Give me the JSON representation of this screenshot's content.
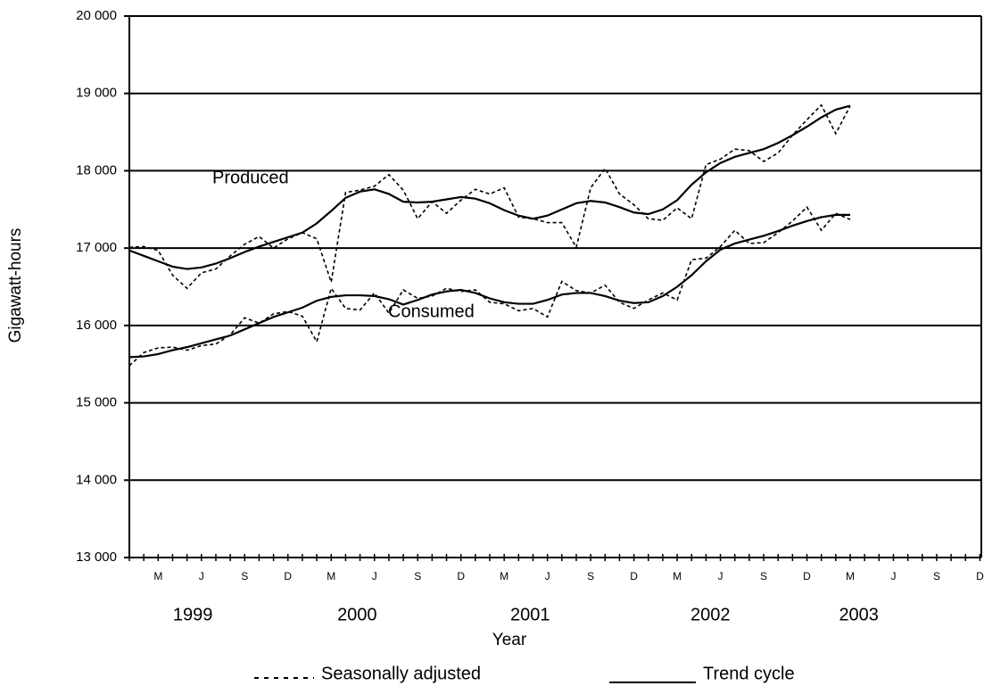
{
  "chart_data": {
    "type": "line",
    "y_label": "Gigawatt-hours",
    "x_label": "Year",
    "categories": [
      null,
      null,
      "M",
      null,
      null,
      "J",
      null,
      null,
      "S",
      null,
      null,
      "D",
      null,
      null,
      "M",
      null,
      null,
      "J",
      null,
      null,
      "S",
      null,
      null,
      "D",
      null,
      null,
      "M",
      null,
      null,
      "J",
      null,
      null,
      "S",
      null,
      null,
      "D",
      null,
      null,
      "M",
      null,
      null,
      "J",
      null,
      null,
      "S",
      null,
      null,
      "D",
      null,
      null,
      "M",
      null,
      null,
      "J",
      null,
      null,
      "S",
      null,
      null,
      "D"
    ],
    "year_labels": [
      "1999",
      "2000",
      "2001",
      "2002",
      "2003"
    ],
    "ylim": [
      13000,
      20000
    ],
    "yticks": [
      {
        "value": 13000,
        "label": "13 000"
      },
      {
        "value": 14000,
        "label": "14 000"
      },
      {
        "value": 15000,
        "label": "15 000"
      },
      {
        "value": 16000,
        "label": "16 000"
      },
      {
        "value": 17000,
        "label": "17 000"
      },
      {
        "value": 18000,
        "label": "18 000"
      },
      {
        "value": 19000,
        "label": "19 000"
      },
      {
        "value": 20000,
        "label": "20 000"
      }
    ],
    "grid": true,
    "color": "#000000",
    "legend": [
      "Seasonally adjusted",
      "Trend cycle"
    ],
    "series": [
      {
        "name": "Produced",
        "trend": [
          16970,
          16900,
          16830,
          16760,
          16730,
          16750,
          16800,
          16870,
          16950,
          17020,
          17080,
          17140,
          17200,
          17320,
          17480,
          17650,
          17730,
          17760,
          17700,
          17600,
          17590,
          17600,
          17630,
          17660,
          17640,
          17580,
          17490,
          17420,
          17380,
          17420,
          17500,
          17580,
          17610,
          17590,
          17530,
          17460,
          17440,
          17500,
          17620,
          17820,
          17980,
          18100,
          18180,
          18230,
          18280,
          18360,
          18460,
          18570,
          18690,
          18790,
          18840,
          null,
          null,
          null,
          null,
          null,
          null,
          null,
          null,
          null
        ],
        "adjusted": [
          17010,
          17020,
          16970,
          16650,
          16480,
          16680,
          16730,
          16900,
          17050,
          17150,
          17000,
          17120,
          17200,
          17120,
          16560,
          17720,
          17750,
          17800,
          17950,
          17750,
          17380,
          17600,
          17450,
          17620,
          17760,
          17700,
          17780,
          17400,
          17380,
          17330,
          17330,
          17010,
          17780,
          18030,
          17700,
          17560,
          17380,
          17360,
          17520,
          17380,
          18080,
          18150,
          18280,
          18260,
          18120,
          18230,
          18460,
          18660,
          18850,
          18480,
          18840,
          null,
          null,
          null,
          null,
          null,
          null,
          null,
          null,
          null
        ]
      },
      {
        "name": "Consumed",
        "trend": [
          15590,
          15600,
          15630,
          15680,
          15720,
          15770,
          15820,
          15870,
          15950,
          16030,
          16110,
          16170,
          16230,
          16320,
          16370,
          16390,
          16390,
          16380,
          16340,
          16270,
          16330,
          16400,
          16440,
          16460,
          16420,
          16350,
          16300,
          16280,
          16280,
          16330,
          16400,
          16420,
          16420,
          16380,
          16320,
          16290,
          16300,
          16380,
          16500,
          16650,
          16830,
          16980,
          17060,
          17110,
          17160,
          17220,
          17290,
          17350,
          17400,
          17430,
          17430,
          null,
          null,
          null,
          null,
          null,
          null,
          null,
          null,
          null
        ],
        "adjusted": [
          15480,
          15650,
          15710,
          15720,
          15680,
          15740,
          15760,
          15880,
          16100,
          16030,
          16150,
          16180,
          16120,
          15790,
          16480,
          16220,
          16200,
          16420,
          16160,
          16460,
          16350,
          16380,
          16480,
          16440,
          16460,
          16300,
          16280,
          16190,
          16220,
          16110,
          16570,
          16450,
          16420,
          16520,
          16300,
          16220,
          16330,
          16420,
          16330,
          16850,
          16870,
          17020,
          17230,
          17060,
          17070,
          17200,
          17350,
          17530,
          17230,
          17450,
          17370,
          null,
          null,
          null,
          null,
          null,
          null,
          null,
          null,
          null
        ]
      }
    ]
  }
}
